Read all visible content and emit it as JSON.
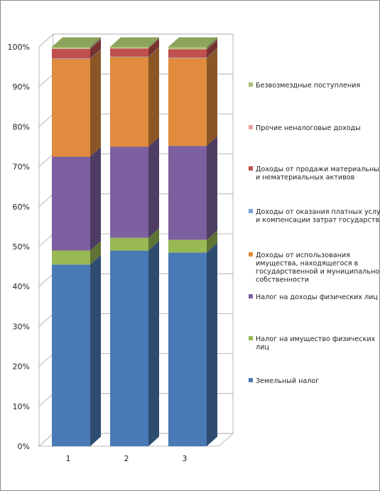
{
  "chart_data": {
    "type": "bar",
    "stacked": true,
    "percent_stacked": true,
    "three_d": true,
    "categories": [
      "1",
      "2",
      "3"
    ],
    "y_ticks": [
      "0%",
      "10%",
      "20%",
      "30%",
      "40%",
      "50%",
      "60%",
      "70%",
      "80%",
      "90%",
      "100%"
    ],
    "ylim": [
      0,
      100
    ],
    "grid": true,
    "legend_position": "right",
    "series": [
      {
        "name": "Земельный налог",
        "color": "#4a7ab5",
        "values": [
          45.5,
          49.0,
          48.5
        ]
      },
      {
        "name": "Налог на имущество физических лиц",
        "color": "#98b954",
        "values": [
          3.5,
          3.2,
          3.2
        ]
      },
      {
        "name": "Налог на доходы физических лиц",
        "color": "#7d60a0",
        "values": [
          23.5,
          22.8,
          23.5
        ]
      },
      {
        "name": "Доходы от использования имущества, находящегося в государственной и муниципальной собственности",
        "color": "#e08b3d",
        "values": [
          24.5,
          22.5,
          22.0
        ]
      },
      {
        "name": "Доходы от оказания платных услуг и компенсации затрат государства",
        "color": "#7aa3d6",
        "values": [
          0.1,
          0.1,
          0.1
        ]
      },
      {
        "name": "Доходы от продажи материальных и нематериальных активов",
        "color": "#c0504d",
        "values": [
          2.4,
          2.0,
          2.1
        ]
      },
      {
        "name": "Прочие неналоговые доходы",
        "color": "#e6a19c",
        "values": [
          0.1,
          0.1,
          0.1
        ]
      },
      {
        "name": "Безвозмездные поступления",
        "color": "#a6c16f",
        "values": [
          0.4,
          0.3,
          0.5
        ]
      }
    ],
    "legend": [
      {
        "lines": [
          "Безвозмездные поступления"
        ],
        "color": "#a6c16f"
      },
      {
        "lines": [
          "Прочие неналоговые доходы"
        ],
        "color": "#e6a19c"
      },
      {
        "lines": [
          "Доходы от продажи материальных",
          "и нематериальных активов"
        ],
        "color": "#c0504d"
      },
      {
        "lines": [
          "Доходы от оказания платных услуг",
          "и компенсации затрат государства"
        ],
        "color": "#7aa3d6"
      },
      {
        "lines": [
          "Доходы от использования",
          "имущества, находящегося в",
          "государственной и муниципальной",
          "собственности"
        ],
        "color": "#e08b3d"
      },
      {
        "lines": [
          "Налог на доходы физических лиц"
        ],
        "color": "#7d60a0"
      },
      {
        "lines": [
          "Налог на имущество физических",
          "лиц"
        ],
        "color": "#98b954"
      },
      {
        "lines": [
          "Земельный налог"
        ],
        "color": "#4a7ab5"
      }
    ]
  }
}
